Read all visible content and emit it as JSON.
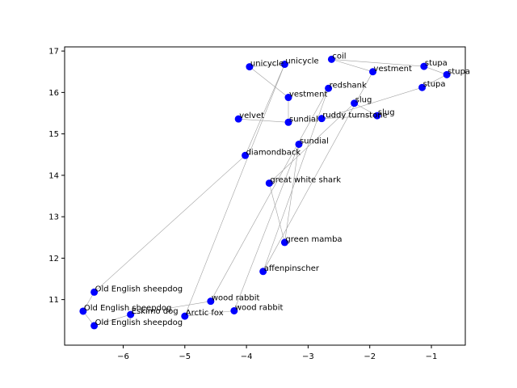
{
  "chart_data": {
    "type": "scatter",
    "title": "",
    "xlabel": "",
    "ylabel": "",
    "xlim": [
      -6.95,
      -0.45
    ],
    "ylim": [
      9.9,
      17.1
    ],
    "xticks": [
      -6,
      -5,
      -4,
      -3,
      -2,
      -1
    ],
    "yticks": [
      11,
      12,
      13,
      14,
      15,
      16,
      17
    ],
    "xtick_labels": [
      "−6",
      "−5",
      "−4",
      "−3",
      "−2",
      "−1"
    ],
    "ytick_labels": [
      "11",
      "12",
      "13",
      "14",
      "15",
      "16",
      "17"
    ],
    "grid": false,
    "point_color": "#0000ff",
    "line_color": "#a0a0a0",
    "points": [
      {
        "label": "unicycle",
        "x": -3.95,
        "y": 16.62
      },
      {
        "label": "unicycle",
        "x": -3.38,
        "y": 16.68
      },
      {
        "label": "coil",
        "x": -2.62,
        "y": 16.8
      },
      {
        "label": "vestment",
        "x": -1.95,
        "y": 16.5
      },
      {
        "label": "stupa",
        "x": -1.12,
        "y": 16.63
      },
      {
        "label": "stupa",
        "x": -0.75,
        "y": 16.43
      },
      {
        "label": "stupa",
        "x": -1.15,
        "y": 16.12
      },
      {
        "label": "redshank",
        "x": -2.67,
        "y": 16.1
      },
      {
        "label": "vestment",
        "x": -3.32,
        "y": 15.88
      },
      {
        "label": "slug",
        "x": -2.25,
        "y": 15.74
      },
      {
        "label": "slug",
        "x": -1.88,
        "y": 15.44
      },
      {
        "label": "ruddy turnstone",
        "x": -2.78,
        "y": 15.37
      },
      {
        "label": "sundial",
        "x": -3.32,
        "y": 15.28
      },
      {
        "label": "velvet",
        "x": -4.13,
        "y": 15.36
      },
      {
        "label": "sundial",
        "x": -3.15,
        "y": 14.75
      },
      {
        "label": "diamondback",
        "x": -4.02,
        "y": 14.48
      },
      {
        "label": "great white shark",
        "x": -3.63,
        "y": 13.81
      },
      {
        "label": "green mamba",
        "x": -3.38,
        "y": 12.38
      },
      {
        "label": "affenpinscher",
        "x": -3.73,
        "y": 11.68
      },
      {
        "label": "Old English sheepdog",
        "x": -6.47,
        "y": 11.18
      },
      {
        "label": "wood rabbit",
        "x": -4.58,
        "y": 10.96
      },
      {
        "label": "Old English sheepdog",
        "x": -6.65,
        "y": 10.72
      },
      {
        "label": "Eskimo dog",
        "x": -5.88,
        "y": 10.64
      },
      {
        "label": "Arctic fox",
        "x": -5.0,
        "y": 10.6
      },
      {
        "label": "wood rabbit",
        "x": -4.2,
        "y": 10.73
      },
      {
        "label": "Old English sheepdog",
        "x": -6.47,
        "y": 10.37
      }
    ],
    "path": [
      13,
      12,
      8,
      0,
      1,
      15,
      19,
      21,
      25,
      22,
      20,
      7,
      18,
      3,
      2,
      4,
      5,
      6,
      11,
      10,
      9,
      16,
      17,
      14,
      24,
      23,
      1
    ]
  }
}
